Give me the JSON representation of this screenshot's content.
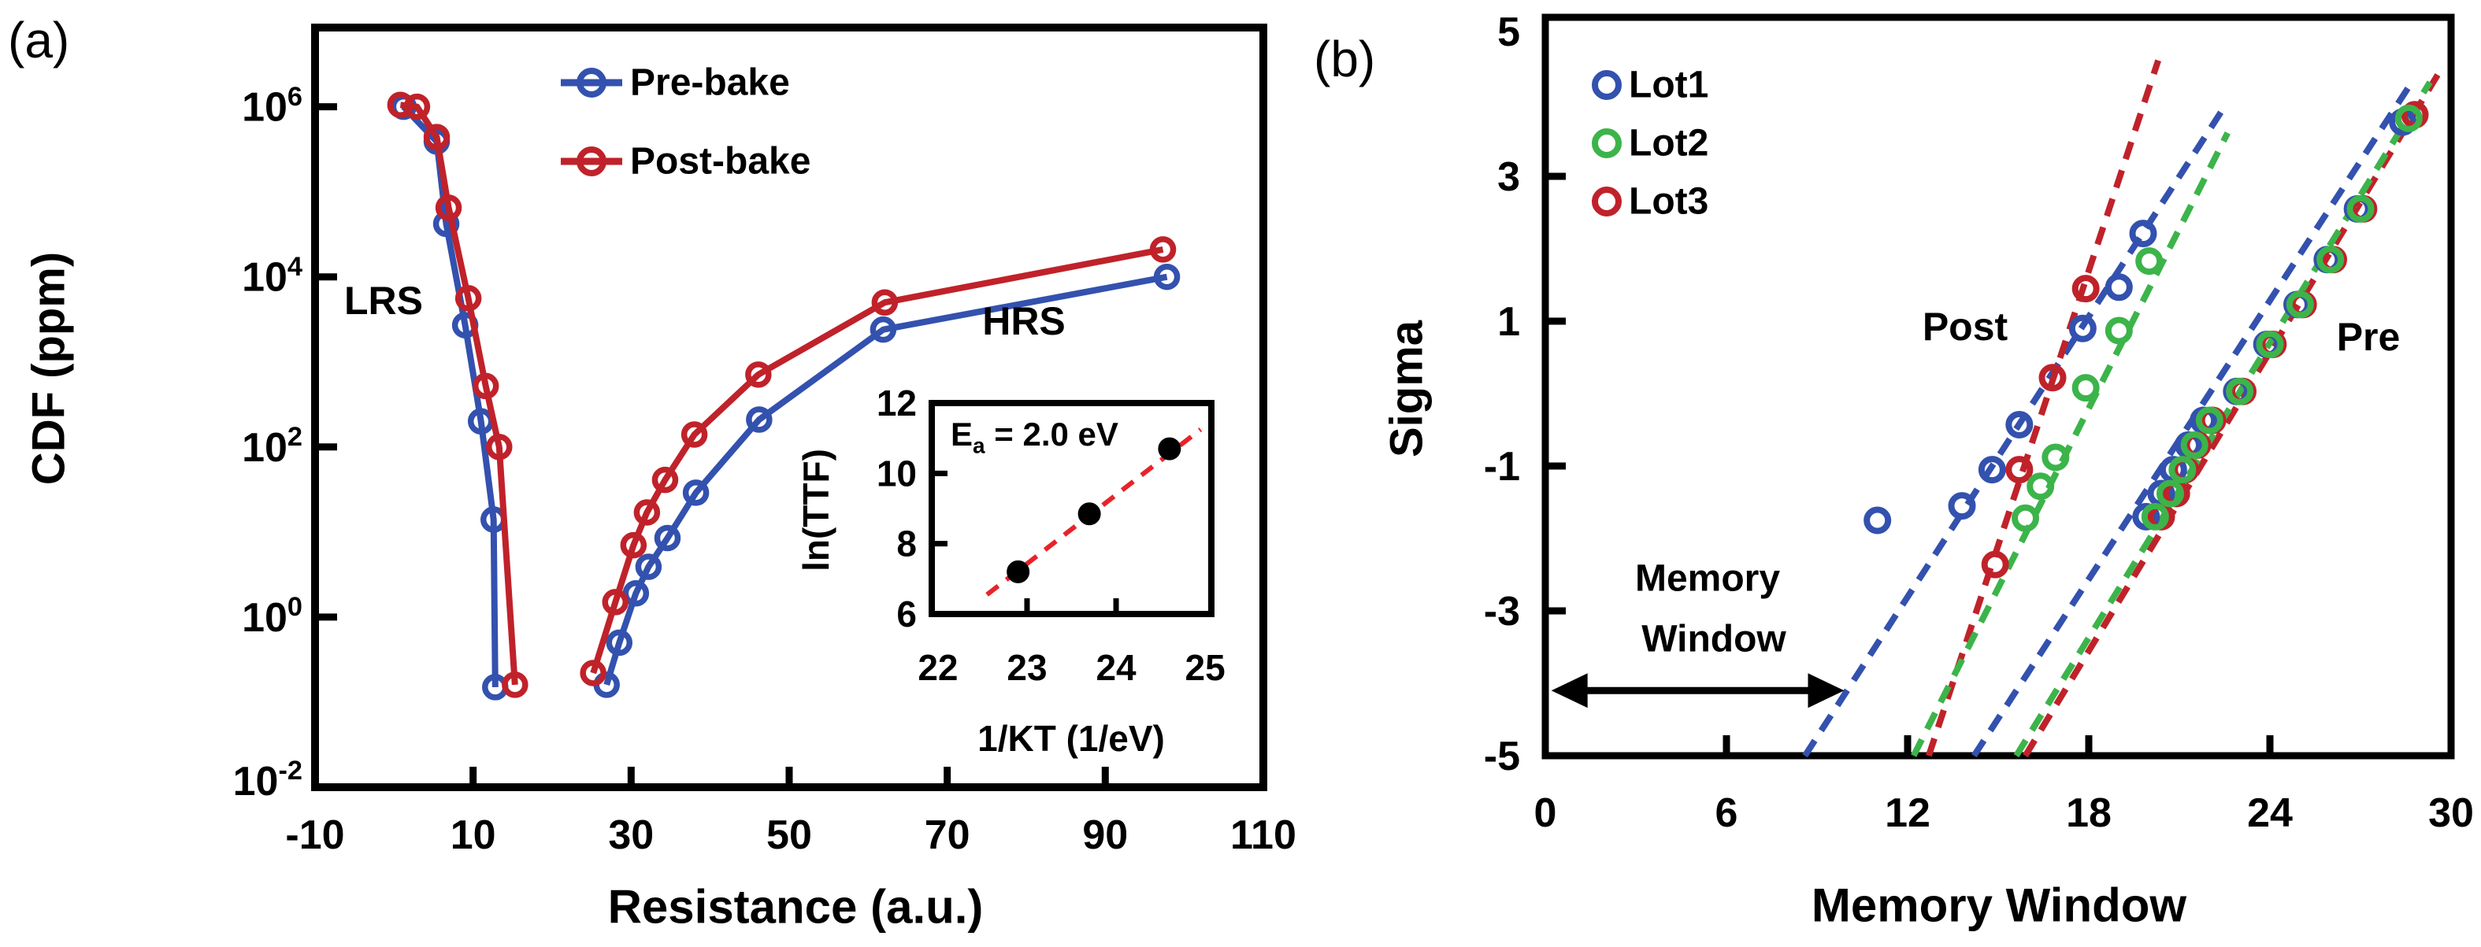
{
  "figure": {
    "panel_a_tag": "(a)",
    "panel_b_tag": "(b)"
  },
  "chart_data": [
    {
      "id": "panel_a",
      "type": "line",
      "xlabel": "Resistance (a.u.)",
      "ylabel": "CDF (ppm)",
      "xlim": [
        -10,
        110
      ],
      "x_ticks": [
        -10,
        10,
        30,
        50,
        70,
        90,
        110
      ],
      "y_scale": "log",
      "ylim": [
        0.01,
        8000000
      ],
      "y_ticks": [
        "10^6",
        "10^4",
        "10^2",
        "10^0",
        "10^-2"
      ],
      "y_tick_values": [
        1000000,
        10000,
        100,
        1,
        0.01
      ],
      "grid": false,
      "legend": {
        "position": "top-center",
        "entries": [
          {
            "label": "Pre-bake",
            "color": "#3351ae"
          },
          {
            "label": "Post-bake",
            "color": "#c0222a"
          }
        ]
      },
      "annotations": [
        {
          "text": "LRS"
        },
        {
          "text": "HRS"
        }
      ],
      "series": [
        {
          "name": "Pre-bake LRS",
          "color": "#3351ae",
          "points": [
            [
              1.2,
              1000000
            ],
            [
              5.4,
              390000
            ],
            [
              6.6,
              42000
            ],
            [
              9.0,
              2700
            ],
            [
              11.0,
              200
            ],
            [
              12.6,
              14
            ],
            [
              12.8,
              0.15
            ]
          ]
        },
        {
          "name": "Post-bake LRS",
          "color": "#c0222a",
          "points": [
            [
              0.8,
              1050000
            ],
            [
              2.9,
              1000000
            ],
            [
              5.4,
              440000
            ],
            [
              6.9,
              65000
            ],
            [
              9.4,
              5600
            ],
            [
              11.6,
              520
            ],
            [
              13.3,
              100
            ],
            [
              15.3,
              0.16
            ]
          ]
        },
        {
          "name": "Pre-bake HRS",
          "color": "#3351ae",
          "points": [
            [
              26.9,
              0.16
            ],
            [
              28.5,
              0.5
            ],
            [
              30.6,
              1.9
            ],
            [
              32.2,
              3.9
            ],
            [
              34.6,
              8.5
            ],
            [
              38.2,
              29
            ],
            [
              46.2,
              210
            ],
            [
              61.9,
              2400
            ],
            [
              97.8,
              10000
            ]
          ]
        },
        {
          "name": "Post-bake HRS",
          "color": "#c0222a",
          "points": [
            [
              25.2,
              0.22
            ],
            [
              28.0,
              1.5
            ],
            [
              30.3,
              7
            ],
            [
              32.0,
              17
            ],
            [
              34.3,
              41
            ],
            [
              38.0,
              140
            ],
            [
              46.1,
              710
            ],
            [
              62.1,
              5000
            ],
            [
              97.3,
              21000
            ]
          ]
        }
      ],
      "inset": {
        "xlabel": "1/KT (1/eV)",
        "ylabel": "ln(TTF)",
        "label_parts": {
          "pre": "E",
          "sub": "a",
          "post": " = 2.0 eV"
        },
        "xlim": [
          21.93,
          25.07
        ],
        "x_ticks": [
          22,
          23,
          24,
          25
        ],
        "ylim": [
          6,
          12
        ],
        "y_ticks": [
          12,
          10,
          8,
          6
        ],
        "points": [
          [
            22.9,
            7.2
          ],
          [
            23.7,
            8.85
          ],
          [
            24.6,
            10.7
          ]
        ],
        "fit_line": {
          "color": "#e8232a",
          "from": [
            22.55,
            6.55
          ],
          "to": [
            24.95,
            11.25
          ]
        }
      }
    },
    {
      "id": "panel_b",
      "type": "scatter",
      "xlabel": "Memory Window",
      "ylabel": "Sigma",
      "xlim": [
        0,
        30
      ],
      "x_ticks": [
        0,
        6,
        12,
        18,
        24,
        30
      ],
      "ylim": [
        -5,
        5.2
      ],
      "y_ticks": [
        5,
        3,
        1,
        -1,
        -3,
        -5
      ],
      "grid": false,
      "legend": {
        "position": "top-left",
        "entries": [
          {
            "label": "Lot1",
            "color": "#3351ae"
          },
          {
            "label": "Lot2",
            "color": "#3cb44a"
          },
          {
            "label": "Lot3",
            "color": "#c0222a"
          }
        ]
      },
      "groups": {
        "post": {
          "label": "Post",
          "series": [
            {
              "name": "Lot1",
              "color": "#3351ae",
              "points": [
                [
                  11.0,
                  -1.75
                ],
                [
                  13.8,
                  -1.55
                ],
                [
                  14.8,
                  -1.05
                ],
                [
                  15.7,
                  -0.43
                ],
                [
                  17.8,
                  0.9
                ],
                [
                  19.0,
                  1.47
                ],
                [
                  19.8,
                  2.21
                ]
              ]
            },
            {
              "name": "Lot3",
              "color": "#c0222a",
              "points": [
                [
                  14.9,
                  -2.36
                ],
                [
                  15.7,
                  -1.05
                ],
                [
                  16.8,
                  0.22
                ],
                [
                  17.9,
                  1.45
                ]
              ]
            },
            {
              "name": "Lot2",
              "color": "#3cb44a",
              "points": [
                [
                  15.9,
                  -1.72
                ],
                [
                  16.4,
                  -1.28
                ],
                [
                  16.9,
                  -0.88
                ],
                [
                  17.9,
                  0.08
                ],
                [
                  19.0,
                  0.87
                ],
                [
                  20.0,
                  1.83
                ]
              ]
            }
          ],
          "trend_lines": [
            {
              "color": "#3351ae",
              "from": [
                8.6,
                -5
              ],
              "to": [
                22.4,
                3.9
              ]
            },
            {
              "color": "#c0222a",
              "from": [
                12.7,
                -5
              ],
              "to": [
                20.3,
                4.6
              ]
            },
            {
              "color": "#3cb44a",
              "from": [
                12.2,
                -5
              ],
              "to": [
                22.6,
                3.6
              ]
            }
          ]
        },
        "pre": {
          "label": "Pre",
          "series": [
            {
              "name": "Lot1",
              "color": "#3351ae",
              "points": [
                [
                  19.9,
                  -1.7
                ],
                [
                  20.4,
                  -1.38
                ],
                [
                  20.8,
                  -1.05
                ],
                [
                  21.3,
                  -0.71
                ],
                [
                  21.8,
                  -0.37
                ],
                [
                  22.9,
                  0.03
                ],
                [
                  23.9,
                  0.68
                ],
                [
                  24.9,
                  1.23
                ],
                [
                  25.9,
                  1.85
                ],
                [
                  26.9,
                  2.55
                ],
                [
                  28.4,
                  3.75
                ]
              ]
            },
            {
              "name": "Lot3",
              "color": "#c0222a",
              "points": [
                [
                  20.4,
                  -1.7
                ],
                [
                  20.9,
                  -1.38
                ],
                [
                  21.2,
                  -1.05
                ],
                [
                  21.6,
                  -0.71
                ],
                [
                  22.1,
                  -0.37
                ],
                [
                  23.1,
                  0.03
                ],
                [
                  24.1,
                  0.68
                ],
                [
                  25.1,
                  1.23
                ],
                [
                  26.1,
                  1.85
                ],
                [
                  27.1,
                  2.55
                ],
                [
                  28.8,
                  3.85
                ]
              ]
            },
            {
              "name": "Lot2",
              "color": "#3cb44a",
              "points": [
                [
                  20.2,
                  -1.7
                ],
                [
                  20.7,
                  -1.38
                ],
                [
                  21.1,
                  -1.05
                ],
                [
                  21.5,
                  -0.71
                ],
                [
                  22.0,
                  -0.37
                ],
                [
                  23.0,
                  0.03
                ],
                [
                  24.0,
                  0.68
                ],
                [
                  25.0,
                  1.23
                ],
                [
                  26.0,
                  1.85
                ],
                [
                  27.0,
                  2.55
                ],
                [
                  28.6,
                  3.8
                ]
              ]
            }
          ],
          "trend_lines": [
            {
              "color": "#3351ae",
              "from": [
                14.2,
                -5
              ],
              "to": [
                28.7,
                4.3
              ]
            },
            {
              "color": "#c0222a",
              "from": [
                15.9,
                -5
              ],
              "to": [
                29.7,
                4.5
              ]
            },
            {
              "color": "#3cb44a",
              "from": [
                15.6,
                -5
              ],
              "to": [
                29.3,
                4.3
              ]
            }
          ]
        }
      },
      "annotation": {
        "line1": "Memory",
        "line2": "Window",
        "arrow": {
          "from_mw": 0.2,
          "to_mw": 9.9,
          "sigma": -4.1
        }
      }
    }
  ]
}
